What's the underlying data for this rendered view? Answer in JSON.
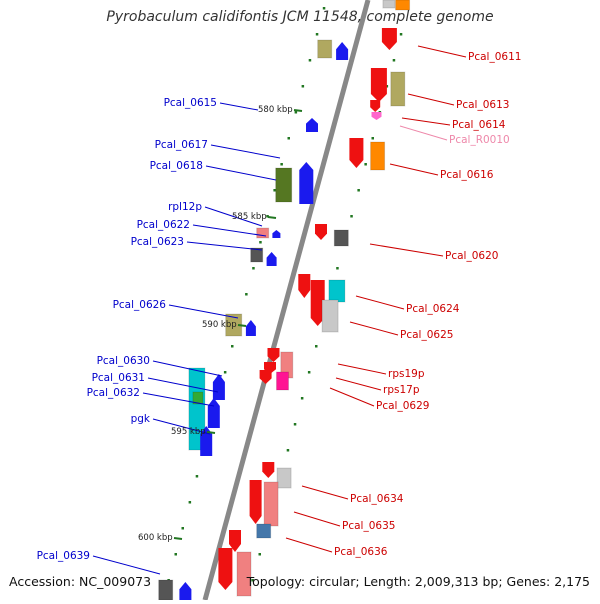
{
  "title": "Pyrobaculum calidifontis JCM 11548, complete genome",
  "footer": {
    "accession": "Accession: NC_009073",
    "topology": "Topology: circular; Length: 2,009,313 bp; Genes: 2,175"
  },
  "colors": {
    "axis": "#888888",
    "tick": "#227722",
    "minus_strand_label": "#0000cc",
    "plus_strand_label": "#cc0000",
    "rna_label": "#ee88aa"
  },
  "kbp_markers": [
    {
      "label": "580 kbp",
      "position_kbp": 580
    },
    {
      "label": "585 kbp",
      "position_kbp": 585
    },
    {
      "label": "590 kbp",
      "position_kbp": 590
    },
    {
      "label": "595 kbp",
      "position_kbp": 595
    },
    {
      "label": "600 kbp",
      "position_kbp": 600
    }
  ],
  "gene_labels": {
    "minus": [
      "Pcal_0615",
      "Pcal_0617",
      "Pcal_0618",
      "rpl12p",
      "Pcal_0622",
      "Pcal_0623",
      "Pcal_0626",
      "Pcal_0630",
      "Pcal_0631",
      "Pcal_0632",
      "pgk",
      "Pcal_0639"
    ],
    "plus": [
      "Pcal_0611",
      "Pcal_0613",
      "Pcal_0614",
      "Pcal_R0010",
      "Pcal_0616",
      "Pcal_0620",
      "Pcal_0624",
      "Pcal_0625",
      "rps19p",
      "rps17p",
      "Pcal_0629",
      "Pcal_0634",
      "Pcal_0635",
      "Pcal_0636"
    ]
  },
  "feature_colors": {
    "red": "#ee1111",
    "blue": "#1a1aee",
    "orange": "#ff8800",
    "khaki": "#b0a860",
    "olive": "#557722",
    "grey": "#555555",
    "cyan": "#00c4cc",
    "pink": "#f08080",
    "light_grey": "#c8c8c8",
    "magenta": "#ff1493",
    "steel": "#4477aa",
    "rna_pink": "#ff66cc",
    "green": "#33aa33"
  }
}
